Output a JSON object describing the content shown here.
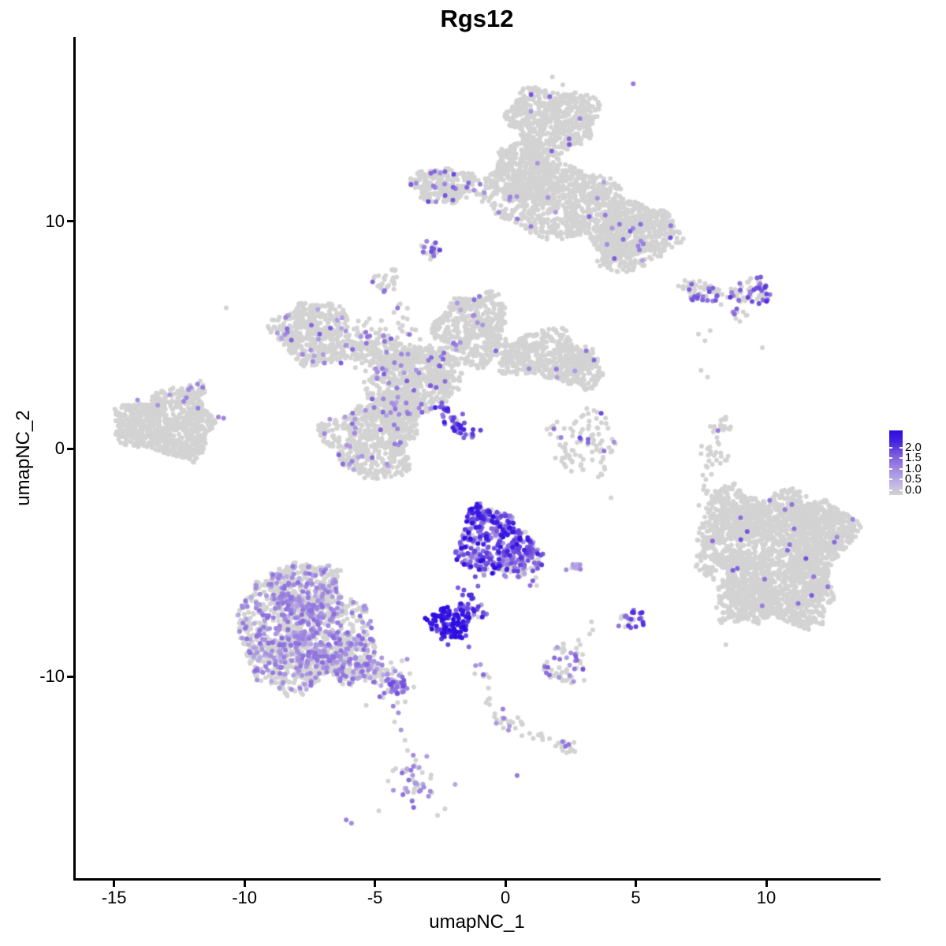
{
  "title": "Rgs12",
  "axes": {
    "x": {
      "label": "umapNC_1",
      "ticks": [
        -15,
        -10,
        -5,
        0,
        5,
        10
      ]
    },
    "y": {
      "label": "umapNC_2",
      "ticks": [
        10,
        0,
        -10
      ]
    }
  },
  "legend": {
    "tick_labels": [
      "2.0",
      "1.5",
      "1.0",
      "0.5",
      "0.0"
    ],
    "tick_values": [
      2.0,
      1.5,
      1.0,
      0.5,
      0.0
    ],
    "low_color": "#d3d3d3",
    "high_color": "#2b0be0"
  },
  "style": {
    "grey": "#d3d3d3",
    "point_radius": 3.0,
    "gradient_stops": [
      [
        0.0,
        "#d3d3d3"
      ],
      [
        0.18,
        "#c0b5e4"
      ],
      [
        0.4,
        "#a28ae0"
      ],
      [
        0.62,
        "#7c5ade"
      ],
      [
        0.82,
        "#4524e2"
      ],
      [
        1.0,
        "#2b0be0"
      ]
    ],
    "legend_gradient_css": "linear-gradient(to bottom,#2c0ce0 0%,#4524e2 18%,#7c5ade 38%,#a28ae0 60%,#c0b5e4 82%,#d3d3d3 100%)"
  },
  "chart_data": {
    "type": "scatter",
    "title": "Rgs12",
    "xlabel": "umapNC_1",
    "ylabel": "umapNC_2",
    "xlim": [
      -16.5,
      14.32
    ],
    "ylim": [
      -18.9,
      18.1
    ],
    "expression_min": 0,
    "expression_max": 2.13,
    "clusters": [
      {
        "id": "top-lobe",
        "cx": 1.8,
        "cy": 14.4,
        "rx": 1.7,
        "ry": 1.55,
        "n": 650,
        "frac": 0.018,
        "vmin": 0.6,
        "vmax": 1.4
      },
      {
        "id": "top-neck",
        "cx": 0.7,
        "cy": 12.2,
        "rx": 1.3,
        "ry": 1.3,
        "n": 380,
        "frac": 0.018,
        "vmin": 0.6,
        "vmax": 1.4
      },
      {
        "id": "top-body",
        "cx": 2.4,
        "cy": 10.8,
        "rx": 2.7,
        "ry": 1.6,
        "rot": -10,
        "n": 850,
        "frac": 0.018,
        "vmin": 0.6,
        "vmax": 1.4
      },
      {
        "id": "top-right-lobe",
        "cx": 5.0,
        "cy": 9.6,
        "rx": 1.65,
        "ry": 1.2,
        "n": 480,
        "frac": 0.02,
        "vmin": 0.6,
        "vmax": 1.4
      },
      {
        "id": "top-right-tip",
        "cx": 4.6,
        "cy": 8.6,
        "rx": 1.2,
        "ry": 0.8,
        "n": 200,
        "frac": 0.03,
        "vmin": 0.6,
        "vmax": 1.4
      },
      {
        "id": "top-left-wing",
        "cx": -2.4,
        "cy": 11.6,
        "rx": 1.2,
        "ry": 0.75,
        "n": 230,
        "frac": 0.1,
        "vmin": 0.8,
        "vmax": 1.5
      },
      {
        "id": "top-wing-bridge",
        "type": "streak",
        "x1": -1.3,
        "y1": 11.2,
        "x2": 0.2,
        "y2": 11.2,
        "w": 0.25,
        "n": 40,
        "frac": 0.08,
        "vmin": 0.7,
        "vmax": 1.3
      },
      {
        "id": "top-small-blob",
        "cx": -2.9,
        "cy": 8.8,
        "rx": 0.4,
        "ry": 0.45,
        "n": 22,
        "frac": 0.35,
        "vmin": 0.9,
        "vmax": 1.7
      },
      {
        "id": "arm-blob",
        "cx": -4.6,
        "cy": 7.4,
        "rx": 0.5,
        "ry": 0.5,
        "n": 30,
        "frac": 0.12,
        "vmin": 0.8,
        "vmax": 1.4
      },
      {
        "id": "arm-streak",
        "type": "streak",
        "x1": -4.5,
        "y1": 6.9,
        "x2": -3.5,
        "y2": 4.8,
        "w": 0.15,
        "n": 16,
        "frac": 0.06,
        "vmin": 0.7,
        "vmax": 1.2
      },
      {
        "id": "mid-left-wing",
        "cx": -7.4,
        "cy": 5.1,
        "rx": 1.4,
        "ry": 1.4,
        "n": 430,
        "frac": 0.05,
        "vmin": 0.5,
        "vmax": 1.3
      },
      {
        "id": "mid-band",
        "type": "streak",
        "x1": -6.1,
        "y1": 4.8,
        "x2": -3.6,
        "y2": 3.7,
        "w": 0.5,
        "n": 270,
        "frac": 0.07,
        "vmin": 0.5,
        "vmax": 1.3
      },
      {
        "id": "mid-top-lobe",
        "cx": -1.2,
        "cy": 5.3,
        "rx": 1.4,
        "ry": 1.55,
        "n": 490,
        "frac": 0.015,
        "vmin": 0.5,
        "vmax": 1.2
      },
      {
        "id": "mid-right-arm",
        "cx": 1.5,
        "cy": 4.1,
        "rx": 1.7,
        "ry": 1.05,
        "n": 430,
        "frac": 0.012,
        "vmin": 0.5,
        "vmax": 1.2
      },
      {
        "id": "mid-right-lobe",
        "cx": 2.9,
        "cy": 3.5,
        "rx": 0.85,
        "ry": 0.85,
        "n": 165,
        "frac": 0.04,
        "vmin": 0.6,
        "vmax": 1.2
      },
      {
        "id": "mid-center",
        "cx": -3.6,
        "cy": 3.0,
        "rx": 1.6,
        "ry": 1.45,
        "n": 520,
        "frac": 0.06,
        "vmin": 0.5,
        "vmax": 1.3
      },
      {
        "id": "mid-bottom-lobe",
        "cx": -5.1,
        "cy": 0.4,
        "rx": 1.75,
        "ry": 1.65,
        "n": 560,
        "frac": 0.05,
        "vmin": 0.5,
        "vmax": 1.3
      },
      {
        "id": "mid-bridge",
        "cx": -4.1,
        "cy": 1.6,
        "rx": 0.9,
        "ry": 0.9,
        "n": 180,
        "frac": 0.05,
        "vmin": 0.5,
        "vmax": 1.2
      },
      {
        "id": "mid-scatter",
        "cx": -2.3,
        "cy": 3.4,
        "rx": 0.8,
        "ry": 0.8,
        "n": 90,
        "frac": 0.03,
        "vmin": 0.5,
        "vmax": 1.2
      },
      {
        "id": "mid-purple-streak",
        "type": "streak",
        "x1": -2.6,
        "y1": 1.9,
        "x2": -1.3,
        "y2": 0.55,
        "w": 0.18,
        "n": 42,
        "frac": 0.92,
        "vmin": 0.9,
        "vmax": 1.9
      },
      {
        "id": "left-main",
        "cx": -13.0,
        "cy": 1.1,
        "rx": 1.9,
        "ry": 1.45,
        "n": 780,
        "frac": 0.005,
        "vmin": 0.5,
        "vmax": 1.0
      },
      {
        "id": "left-arm",
        "type": "streak",
        "x1": -12.4,
        "y1": 2.0,
        "x2": -11.6,
        "y2": 2.7,
        "w": 0.25,
        "n": 40,
        "frac": 0.1,
        "vmin": 0.7,
        "vmax": 1.2
      },
      {
        "id": "left-tail",
        "cx": -12.1,
        "cy": -0.2,
        "rx": 0.4,
        "ry": 0.45,
        "n": 28,
        "frac": 0
      },
      {
        "id": "topright-streak-grey",
        "type": "streak",
        "x1": 6.6,
        "y1": 7.1,
        "x2": 8.4,
        "y2": 6.85,
        "w": 0.22,
        "n": 45,
        "frac": 0.12,
        "vmin": 0.7,
        "vmax": 1.3
      },
      {
        "id": "topright-streak-purple",
        "type": "streak",
        "x1": 6.7,
        "y1": 6.7,
        "x2": 8.2,
        "y2": 6.6,
        "w": 0.12,
        "n": 16,
        "frac": 0.92,
        "vmin": 0.8,
        "vmax": 1.5
      },
      {
        "id": "topright-blob",
        "cx": 9.4,
        "cy": 6.95,
        "rx": 0.8,
        "ry": 0.6,
        "n": 72,
        "frac": 0.3,
        "vmin": 0.8,
        "vmax": 1.7
      },
      {
        "id": "topright-diag",
        "type": "streak",
        "x1": 8.65,
        "y1": 6.15,
        "x2": 9.25,
        "y2": 5.6,
        "w": 0.18,
        "n": 11,
        "frac": 0.5,
        "vmin": 0.8,
        "vmax": 1.4
      },
      {
        "id": "center-right-sparse",
        "cx": 2.95,
        "cy": 0.2,
        "rx": 1.3,
        "ry": 1.5,
        "n": 95,
        "frac": 0.09,
        "vmin": 0.8,
        "vmax": 1.5
      },
      {
        "id": "right-ear-blob",
        "cx": 8.25,
        "cy": 0.95,
        "rx": 0.4,
        "ry": 0.45,
        "n": 16,
        "frac": 0.1,
        "vmin": 0.9,
        "vmax": 1.1
      },
      {
        "id": "right-ear-tail",
        "type": "streak",
        "x1": 7.75,
        "y1": 0.35,
        "x2": 7.9,
        "y2": -0.85,
        "w": 0.18,
        "n": 13,
        "frac": 0
      },
      {
        "id": "right-ear-tail2",
        "type": "streak",
        "x1": 8.3,
        "y1": 0.3,
        "x2": 8.27,
        "y2": -0.85,
        "w": 0.14,
        "n": 10,
        "frac": 0
      },
      {
        "id": "right-main",
        "cx": 10.4,
        "cy": -4.55,
        "rx": 2.65,
        "ry": 2.75,
        "n": 1500,
        "frac": 0.007,
        "vmin": 0.8,
        "vmax": 1.5
      },
      {
        "id": "right-topleft",
        "cx": 8.8,
        "cy": -2.9,
        "rx": 1.2,
        "ry": 1.2,
        "n": 280,
        "frac": 0.007,
        "vmin": 0.8,
        "vmax": 1.5
      },
      {
        "id": "right-topright",
        "cx": 12.1,
        "cy": -3.55,
        "rx": 1.35,
        "ry": 1.25,
        "n": 330,
        "frac": 0.007,
        "vmin": 0.8,
        "vmax": 1.5
      },
      {
        "id": "right-botleft",
        "cx": 9.2,
        "cy": -6.55,
        "rx": 1.2,
        "ry": 1.2,
        "n": 280,
        "frac": 0.007,
        "vmin": 0.8,
        "vmax": 1.5
      },
      {
        "id": "right-botright",
        "cx": 11.2,
        "cy": -6.35,
        "rx": 1.45,
        "ry": 1.45,
        "n": 330,
        "frac": 0.007,
        "vmin": 0.8,
        "vmax": 1.5
      },
      {
        "id": "right-bump",
        "cx": 7.75,
        "cy": -5.0,
        "rx": 0.42,
        "ry": 0.7,
        "n": 45,
        "frac": 0
      },
      {
        "id": "right-strip",
        "type": "streak",
        "x1": 7.75,
        "y1": -1.1,
        "x2": 7.9,
        "y2": -4.1,
        "w": 0.2,
        "n": 14,
        "frac": 0.1,
        "vmin": 1.0,
        "vmax": 1.4
      },
      {
        "id": "hot-main",
        "cx": -0.55,
        "cy": -4.1,
        "rx": 1.35,
        "ry": 1.45,
        "n": 330,
        "profile": [
          [
            0.13,
            0,
            0
          ],
          [
            0.22,
            0.5,
            1.0
          ],
          [
            0.45,
            1.0,
            1.6
          ],
          [
            0.2,
            1.6,
            2.1
          ]
        ]
      },
      {
        "id": "hot-right",
        "cx": 0.65,
        "cy": -4.8,
        "rx": 0.8,
        "ry": 1.0,
        "n": 115,
        "profile": [
          [
            0.35,
            0,
            0
          ],
          [
            0.35,
            0.5,
            1.1
          ],
          [
            0.25,
            1.1,
            1.6
          ],
          [
            0.05,
            1.6,
            1.9
          ]
        ]
      },
      {
        "id": "hot-top",
        "cx": -0.9,
        "cy": -2.95,
        "rx": 0.5,
        "ry": 0.5,
        "n": 45,
        "profile": [
          [
            0.15,
            0,
            0
          ],
          [
            0.25,
            0.5,
            1.0
          ],
          [
            0.4,
            1.0,
            1.6
          ],
          [
            0.2,
            1.6,
            2.1
          ]
        ]
      },
      {
        "id": "hot-trail",
        "type": "streak",
        "x1": -1.1,
        "y1": -5.6,
        "x2": -1.85,
        "y2": -7.2,
        "w": 0.15,
        "n": 17,
        "frac": 1,
        "vmin": 1.2,
        "vmax": 1.9
      },
      {
        "id": "hot-dense",
        "cx": -2.1,
        "cy": -7.65,
        "rx": 0.85,
        "ry": 0.68,
        "rot": -15,
        "n": 120,
        "profile": [
          [
            0.05,
            0,
            0
          ],
          [
            0.08,
            0.6,
            1.1
          ],
          [
            0.27,
            1.2,
            1.8
          ],
          [
            0.6,
            1.8,
            2.13
          ]
        ]
      },
      {
        "id": "hot-side",
        "cx": -1.2,
        "cy": -7.15,
        "rx": 0.45,
        "ry": 0.4,
        "n": 25,
        "profile": [
          [
            0.2,
            0,
            0
          ],
          [
            0.3,
            0.6,
            1.2
          ],
          [
            0.5,
            1.2,
            1.9
          ]
        ]
      },
      {
        "id": "small-streak",
        "type": "streak",
        "x1": 2.3,
        "y1": -5.1,
        "x2": 3.1,
        "y2": -5.2,
        "w": 0.15,
        "n": 11,
        "frac": 0.6,
        "vmin": 0.5,
        "vmax": 1.0
      },
      {
        "id": "small-hot-blob",
        "cx": 5.0,
        "cy": -7.5,
        "rx": 0.42,
        "ry": 0.5,
        "n": 18,
        "frac": 0.8,
        "vmin": 1.0,
        "vmax": 1.8
      },
      {
        "id": "small-grey-blob",
        "cx": 4.5,
        "cy": -7.7,
        "rx": 0.3,
        "ry": 0.4,
        "n": 10,
        "frac": 0.25,
        "vmin": 0.8,
        "vmax": 1.2
      },
      {
        "id": "botleft-top",
        "cx": -7.7,
        "cy": -6.0,
        "rx": 1.35,
        "ry": 1.05,
        "n": 300,
        "frac": 0.33,
        "vmin": 0.4,
        "vmax": 1.15
      },
      {
        "id": "botleft-left",
        "cx": -8.8,
        "cy": -7.6,
        "rx": 1.6,
        "ry": 1.55,
        "n": 420,
        "frac": 0.33,
        "vmin": 0.4,
        "vmax": 1.15
      },
      {
        "id": "botleft-mid",
        "cx": -6.9,
        "cy": -7.95,
        "rx": 1.65,
        "ry": 1.75,
        "n": 470,
        "frac": 0.33,
        "vmin": 0.4,
        "vmax": 1.15
      },
      {
        "id": "botleft-bottom",
        "cx": -8.2,
        "cy": -9.5,
        "rx": 1.65,
        "ry": 1.15,
        "n": 330,
        "frac": 0.33,
        "vmin": 0.4,
        "vmax": 1.15
      },
      {
        "id": "botleft-right",
        "cx": -6.0,
        "cy": -9.3,
        "rx": 1.2,
        "ry": 0.95,
        "n": 230,
        "frac": 0.33,
        "vmin": 0.4,
        "vmax": 1.15
      },
      {
        "id": "botleft-tail",
        "type": "streak",
        "x1": -5.4,
        "y1": -9.45,
        "x2": -4.0,
        "y2": -10.55,
        "w": 0.35,
        "n": 90,
        "frac": 0.5,
        "vmin": 0.5,
        "vmax": 1.2
      },
      {
        "id": "botleft-tip",
        "cx": -4.1,
        "cy": -10.45,
        "rx": 0.4,
        "ry": 0.4,
        "n": 25,
        "frac": 0.75,
        "vmin": 0.8,
        "vmax": 1.5
      },
      {
        "id": "bottom-streak",
        "type": "streak",
        "x1": -3.45,
        "y1": -13.6,
        "x2": -3.6,
        "y2": -15.6,
        "w": 0.4,
        "n": 50,
        "frac": 0.55,
        "vmin": 0.5,
        "vmax": 1.2
      },
      {
        "id": "thin-diag",
        "type": "streak",
        "x1": -1.0,
        "y1": -9.45,
        "x2": -0.35,
        "y2": -11.7,
        "w": 0.12,
        "n": 15,
        "frac": 0.45,
        "vmin": 0.6,
        "vmax": 1.2
      },
      {
        "id": "diag-junction",
        "cx": -0.1,
        "cy": -12.0,
        "rx": 0.35,
        "ry": 0.3,
        "n": 10,
        "frac": 0.3,
        "vmin": 0.6,
        "vmax": 1.2
      },
      {
        "id": "diag-arm-right",
        "type": "streak",
        "x1": 0.1,
        "y1": -12.0,
        "x2": 1.0,
        "y2": -11.95,
        "w": 0.12,
        "n": 7,
        "frac": 0.15,
        "vmin": 0.6,
        "vmax": 1.0
      },
      {
        "id": "diag-arm-down",
        "type": "streak",
        "x1": 0.2,
        "y1": -12.35,
        "x2": 2.0,
        "y2": -12.95,
        "w": 0.13,
        "n": 11,
        "frac": 0.2,
        "vmin": 0.6,
        "vmax": 1.0
      },
      {
        "id": "diag-end-blob",
        "cx": 2.4,
        "cy": -13.05,
        "rx": 0.4,
        "ry": 0.33,
        "n": 14,
        "frac": 0.45,
        "vmin": 0.7,
        "vmax": 1.3
      },
      {
        "id": "bottom-center-blob",
        "cx": 2.3,
        "cy": -9.5,
        "rx": 0.85,
        "ry": 0.9,
        "n": 55,
        "frac": 0.28,
        "vmin": 0.6,
        "vmax": 1.4
      }
    ],
    "singles_grey": [
      [
        -10.7,
        6.2
      ],
      [
        1.8,
        16.35
      ],
      [
        2.2,
        16.0
      ],
      [
        4.05,
        -2.15
      ],
      [
        7.4,
        5.05
      ],
      [
        7.65,
        4.75
      ],
      [
        7.85,
        5.2
      ],
      [
        7.5,
        3.45
      ],
      [
        7.75,
        3.15
      ],
      [
        9.85,
        4.45
      ],
      [
        8.45,
        -8.6
      ],
      [
        -4.85,
        -15.9
      ],
      [
        -4.25,
        -12.0
      ],
      [
        -3.85,
        -12.8
      ],
      [
        -3.75,
        -13.25
      ],
      [
        3.3,
        -7.6
      ],
      [
        3.35,
        -7.95
      ],
      [
        3.23,
        -8.13
      ],
      [
        2.8,
        -8.4
      ],
      [
        2.87,
        -8.6
      ],
      [
        1.2,
        -6.0
      ],
      [
        7.9,
        -1.12
      ],
      [
        -2.6,
        -16.1
      ]
    ],
    "singles_expr": [
      [
        0.45,
        -14.35,
        1.0
      ],
      [
        -6.1,
        -16.3,
        0.95
      ],
      [
        -5.9,
        -16.45,
        0.85
      ],
      [
        -4.3,
        -11.3,
        0.9
      ],
      [
        -4.1,
        -11.6,
        0.8
      ],
      [
        -4.0,
        -12.35,
        0.7
      ],
      [
        -2.45,
        -8.35,
        1.6
      ],
      [
        -2.2,
        -8.6,
        1.5
      ],
      [
        -1.4,
        -8.7,
        1.2
      ],
      [
        4.9,
        16.05,
        1.0
      ],
      [
        -1.0,
        6.7,
        1.0
      ],
      [
        -14.1,
        2.15,
        0.8
      ],
      [
        -11.8,
        2.85,
        0.9
      ],
      [
        -11.6,
        2.7,
        1.0
      ],
      [
        -11.0,
        1.4,
        0.9
      ],
      [
        -10.8,
        1.35,
        0.9
      ],
      [
        1.05,
        -5.8,
        1.3
      ],
      [
        0.95,
        -6.0,
        1.1
      ],
      [
        8.15,
        0.8,
        1.0
      ]
    ]
  }
}
